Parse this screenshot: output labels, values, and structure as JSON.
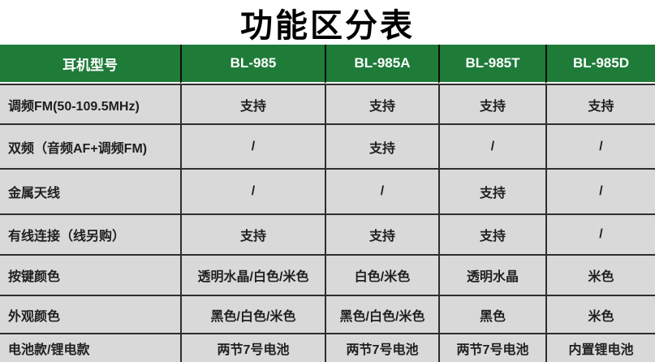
{
  "title": "功能区分表",
  "colors": {
    "header_bg": "#1e7b38",
    "header_text": "#ffffff",
    "cell_bg": "#d9d9d9",
    "cell_text": "#1f1f1f",
    "grid_border": "#2e2e2e",
    "title_text": "#000000"
  },
  "table": {
    "columns": [
      "耳机型号",
      "BL-985",
      "BL-985A",
      "BL-985T",
      "BL-985D"
    ],
    "rows": [
      {
        "label": "调频FM(50-109.5MHz)",
        "values": [
          "支持",
          "支持",
          "支持",
          "支持"
        ]
      },
      {
        "label": "双频（音频AF+调频FM)",
        "values": [
          "/",
          "支持",
          "/",
          "/"
        ]
      },
      {
        "label": "金属天线",
        "values": [
          "/",
          "/",
          "支持",
          "/"
        ]
      },
      {
        "label": "有线连接（线另购）",
        "values": [
          "支持",
          "支持",
          "支持",
          "/"
        ]
      },
      {
        "label": "按键颜色",
        "values": [
          "透明水晶/白色/米色",
          "白色/米色",
          "透明水晶",
          "米色"
        ]
      },
      {
        "label": "外观颜色",
        "values": [
          "黑色/白色/米色",
          "黑色/白色/米色",
          "黑色",
          "米色"
        ]
      },
      {
        "label": "电池款/锂电款",
        "values": [
          "两节7号电池",
          "两节7号电池",
          "两节7号电池",
          "内置锂电池"
        ]
      }
    ]
  },
  "chart_data": {
    "type": "table",
    "title": "功能区分表",
    "columns": [
      "耳机型号",
      "BL-985",
      "BL-985A",
      "BL-985T",
      "BL-985D"
    ],
    "rows": [
      [
        "调频FM(50-109.5MHz)",
        "支持",
        "支持",
        "支持",
        "支持"
      ],
      [
        "双频（音频AF+调频FM)",
        "/",
        "支持",
        "/",
        "/"
      ],
      [
        "金属天线",
        "/",
        "/",
        "支持",
        "/"
      ],
      [
        "有线连接（线另购）",
        "支持",
        "支持",
        "支持",
        "/"
      ],
      [
        "按键颜色",
        "透明水晶/白色/米色",
        "白色/米色",
        "透明水晶",
        "米色"
      ],
      [
        "外观颜色",
        "黑色/白色/米色",
        "黑色/白色/米色",
        "黑色",
        "米色"
      ],
      [
        "电池款/锂电款",
        "两节7号电池",
        "两节7号电池",
        "两节7号电池",
        "内置锂电池"
      ]
    ]
  }
}
